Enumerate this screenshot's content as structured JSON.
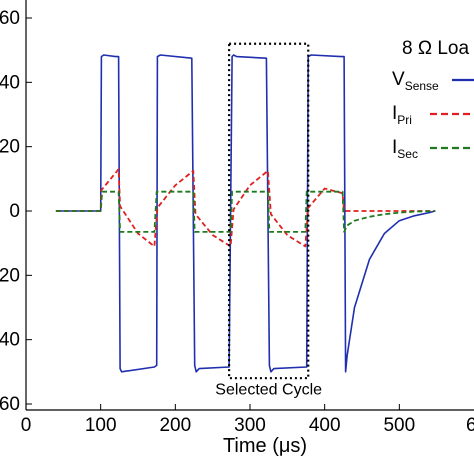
{
  "chart_data": {
    "type": "line",
    "xlabel": "Time (μs)",
    "ylabel": "",
    "xlim": [
      0,
      600
    ],
    "ylim": [
      -60,
      60
    ],
    "x_ticks": [
      0,
      100,
      200,
      300,
      400,
      500
    ],
    "x_tick_labels": [
      "0",
      "100",
      "200",
      "300",
      "400",
      "500"
    ],
    "x_edge_label": "6",
    "y_ticks": [
      60,
      40,
      20,
      0,
      -20,
      -40,
      -60
    ],
    "y_tick_labels": [
      "60",
      "40",
      "20",
      "0",
      "20",
      "40",
      "60"
    ],
    "grid": false,
    "legend": {
      "title": "8 Ω Loa",
      "position": "top-right",
      "entries": [
        {
          "main": "V",
          "sub": "Sense",
          "color": "#1f2fb0",
          "dash": "solid"
        },
        {
          "main": "I",
          "sub": "Pri",
          "color": "#e02020",
          "dash": "dashed"
        },
        {
          "main": "I",
          "sub": "Sec",
          "color": "#1e7a1e",
          "dash": "dashed"
        }
      ]
    },
    "annotation": {
      "text": "Selected Cycle",
      "x_range": [
        272,
        378
      ],
      "y_range": [
        -52,
        52
      ]
    },
    "series": [
      {
        "name": "V_Sense",
        "color": "#1f2fb0",
        "dash": "solid",
        "x": [
          40,
          100,
          101,
          104,
          120,
          124,
          126,
          128,
          172,
          175,
          176,
          180,
          222,
          226,
          228,
          232,
          272,
          276,
          278,
          282,
          322,
          326,
          328,
          332,
          376,
          378,
          382,
          422,
          426,
          428,
          430,
          440,
          460,
          480,
          500,
          520,
          540,
          548
        ],
        "values": [
          0,
          0,
          48,
          48.5,
          48,
          48,
          -49,
          -50,
          -48.5,
          -48,
          48,
          48.5,
          47.5,
          -48,
          -50,
          -49,
          -48.5,
          48,
          48.5,
          48,
          47.5,
          -48,
          -50,
          -49,
          -48.5,
          48,
          48.5,
          48,
          48,
          -50,
          -45,
          -30,
          -15,
          -7,
          -3,
          -1.5,
          -0.5,
          0
        ]
      },
      {
        "name": "I_Pri",
        "color": "#e02020",
        "dash": "dashed",
        "x": [
          40,
          100,
          101,
          124,
          126,
          150,
          172,
          176,
          200,
          224,
          227,
          250,
          274,
          278,
          300,
          324,
          328,
          350,
          374,
          378,
          400,
          424,
          426,
          440,
          470,
          500,
          548
        ],
        "values": [
          0,
          0,
          6.5,
          13,
          1.5,
          -7,
          -11,
          1,
          8,
          12.5,
          -1,
          -7.5,
          -11,
          0.5,
          8,
          12.5,
          -1,
          -7.5,
          -11,
          1,
          7,
          5.5,
          0,
          0,
          0,
          0,
          0
        ]
      },
      {
        "name": "I_Sec",
        "color": "#1e7a1e",
        "dash": "dashed",
        "x": [
          40,
          100,
          102,
          124,
          126,
          172,
          175,
          224,
          226,
          274,
          276,
          324,
          326,
          374,
          376,
          424,
          426,
          430,
          440,
          460,
          480,
          500,
          520,
          548
        ],
        "values": [
          0,
          0,
          6,
          6,
          -6.5,
          -6.5,
          6,
          6,
          -6.5,
          -6.5,
          6,
          6,
          -6.5,
          -6.5,
          6,
          6,
          -6.5,
          -4.5,
          -3,
          -1.8,
          -1,
          -0.5,
          -0.2,
          0
        ]
      }
    ]
  }
}
